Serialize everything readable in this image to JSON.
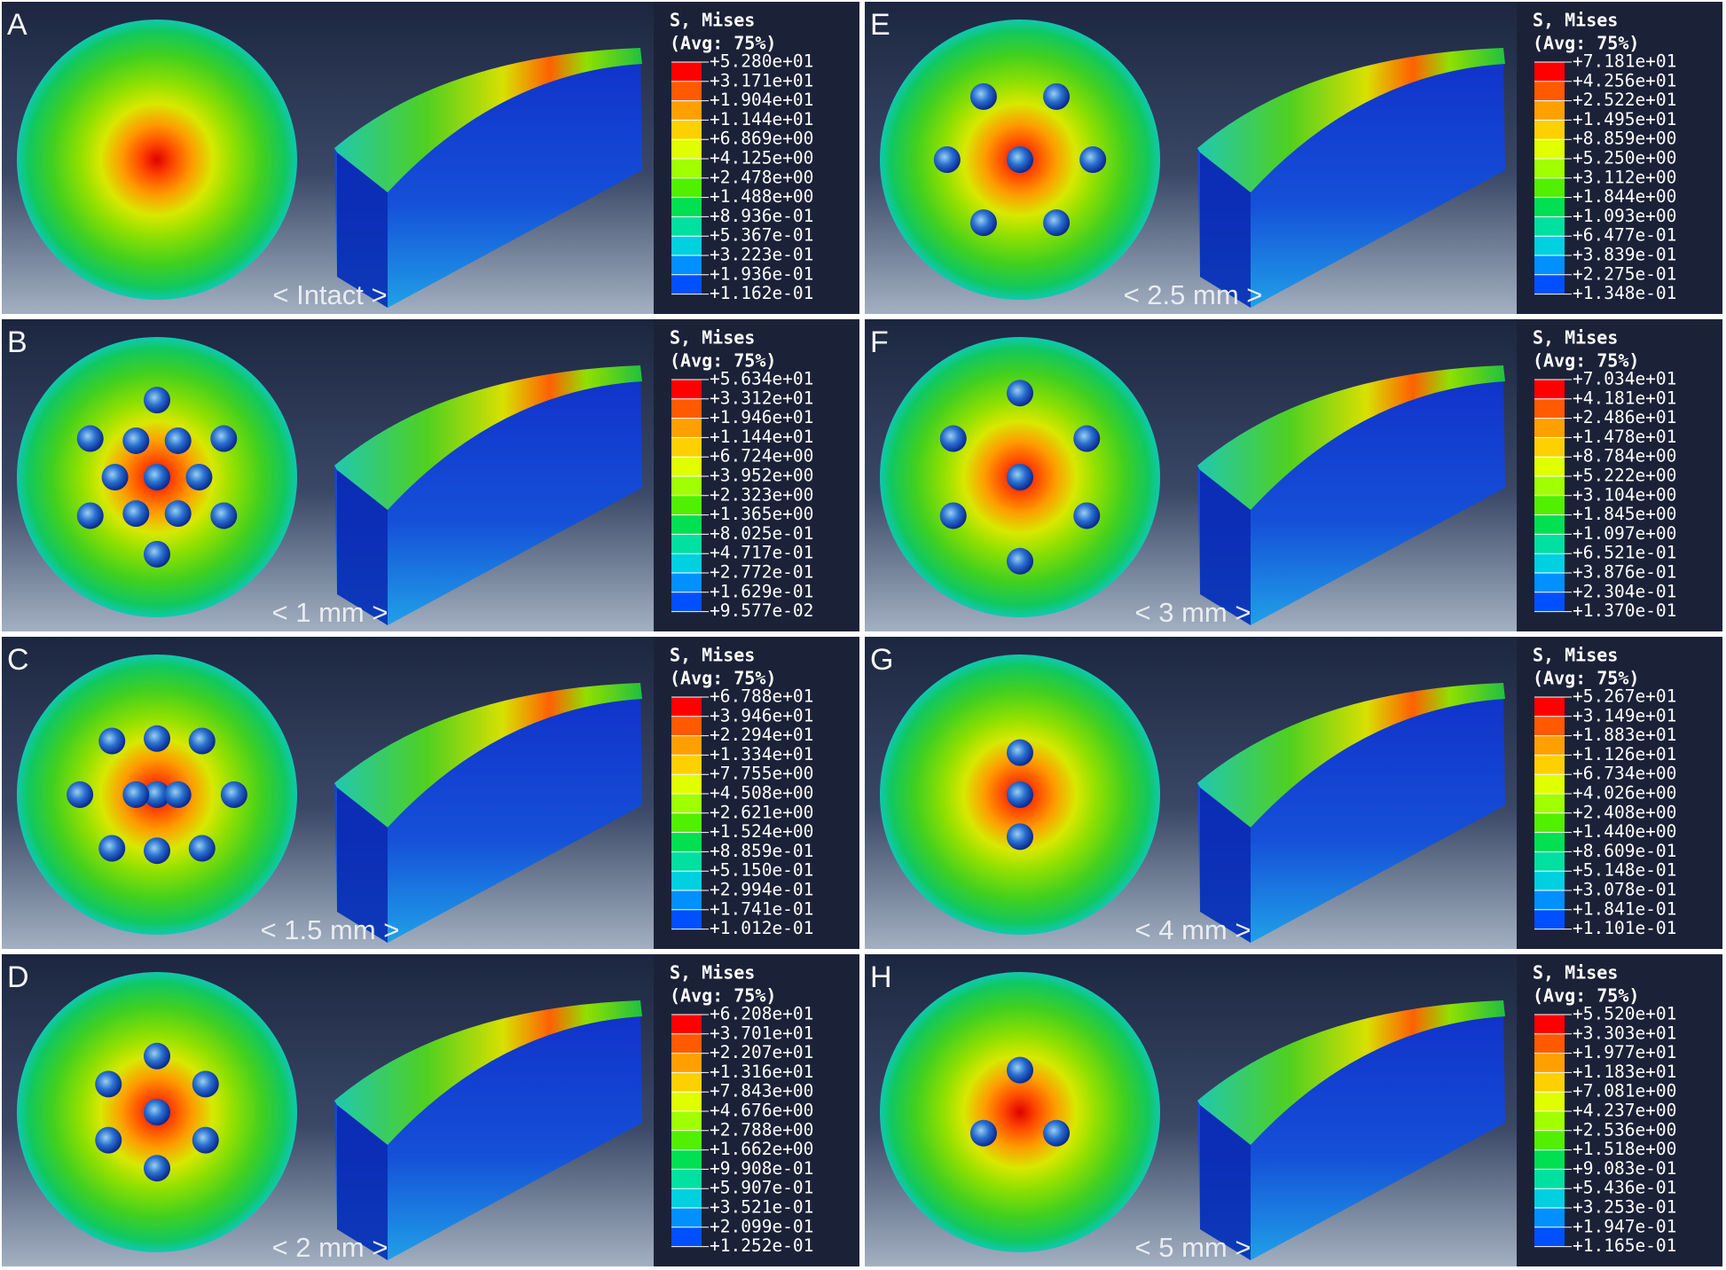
{
  "panels": [
    {
      "label": "A",
      "caption": "< Intact >",
      "legend": {
        "title": "S, Mises",
        "subtitle": "(Avg: 75%)",
        "values": [
          "+5.280e+01",
          "+3.171e+01",
          "+1.904e+01",
          "+1.144e+01",
          "+6.869e+00",
          "+4.125e+00",
          "+2.478e+00",
          "+1.488e+00",
          "+8.936e-01",
          "+5.367e-01",
          "+3.223e-01",
          "+1.936e-01",
          "+1.162e-01"
        ]
      }
    },
    {
      "label": "B",
      "caption": "< 1 mm >",
      "legend": {
        "title": "S, Mises",
        "subtitle": "(Avg: 75%)",
        "values": [
          "+5.634e+01",
          "+3.312e+01",
          "+1.946e+01",
          "+1.144e+01",
          "+6.724e+00",
          "+3.952e+00",
          "+2.323e+00",
          "+1.365e+00",
          "+8.025e-01",
          "+4.717e-01",
          "+2.772e-01",
          "+1.629e-01",
          "+9.577e-02"
        ]
      }
    },
    {
      "label": "C",
      "caption": "< 1.5 mm >",
      "legend": {
        "title": "S, Mises",
        "subtitle": "(Avg: 75%)",
        "values": [
          "+6.788e+01",
          "+3.946e+01",
          "+2.294e+01",
          "+1.334e+01",
          "+7.755e+00",
          "+4.508e+00",
          "+2.621e+00",
          "+1.524e+00",
          "+8.859e-01",
          "+5.150e-01",
          "+2.994e-01",
          "+1.741e-01",
          "+1.012e-01"
        ]
      }
    },
    {
      "label": "D",
      "caption": "< 2 mm >",
      "legend": {
        "title": "S, Mises",
        "subtitle": "(Avg: 75%)",
        "values": [
          "+6.208e+01",
          "+3.701e+01",
          "+2.207e+01",
          "+1.316e+01",
          "+7.843e+00",
          "+4.676e+00",
          "+2.788e+00",
          "+1.662e+00",
          "+9.908e-01",
          "+5.907e-01",
          "+3.521e-01",
          "+2.099e-01",
          "+1.252e-01"
        ]
      }
    },
    {
      "label": "E",
      "caption": "< 2.5 mm >",
      "legend": {
        "title": "S, Mises",
        "subtitle": "(Avg: 75%)",
        "values": [
          "+7.181e+01",
          "+4.256e+01",
          "+2.522e+01",
          "+1.495e+01",
          "+8.859e+00",
          "+5.250e+00",
          "+3.112e+00",
          "+1.844e+00",
          "+1.093e+00",
          "+6.477e-01",
          "+3.839e-01",
          "+2.275e-01",
          "+1.348e-01"
        ]
      }
    },
    {
      "label": "F",
      "caption": "< 3 mm >",
      "legend": {
        "title": "S, Mises",
        "subtitle": "(Avg: 75%)",
        "values": [
          "+7.034e+01",
          "+4.181e+01",
          "+2.486e+01",
          "+1.478e+01",
          "+8.784e+00",
          "+5.222e+00",
          "+3.104e+00",
          "+1.845e+00",
          "+1.097e+00",
          "+6.521e-01",
          "+3.876e-01",
          "+2.304e-01",
          "+1.370e-01"
        ]
      }
    },
    {
      "label": "G",
      "caption": "< 4 mm >",
      "legend": {
        "title": "S, Mises",
        "subtitle": "(Avg: 75%)",
        "values": [
          "+5.267e+01",
          "+3.149e+01",
          "+1.883e+01",
          "+1.126e+01",
          "+6.734e+00",
          "+4.026e+00",
          "+2.408e+00",
          "+1.440e+00",
          "+8.609e-01",
          "+5.148e-01",
          "+3.078e-01",
          "+1.841e-01",
          "+1.101e-01"
        ]
      }
    },
    {
      "label": "H",
      "caption": "< 5 mm >",
      "legend": {
        "title": "S, Mises",
        "subtitle": "(Avg: 75%)",
        "values": [
          "+5.520e+01",
          "+3.303e+01",
          "+1.977e+01",
          "+1.183e+01",
          "+7.081e+00",
          "+4.237e+00",
          "+2.536e+00",
          "+1.518e+00",
          "+9.083e-01",
          "+5.436e-01",
          "+3.253e-01",
          "+1.947e-01",
          "+1.165e-01"
        ]
      }
    }
  ]
}
